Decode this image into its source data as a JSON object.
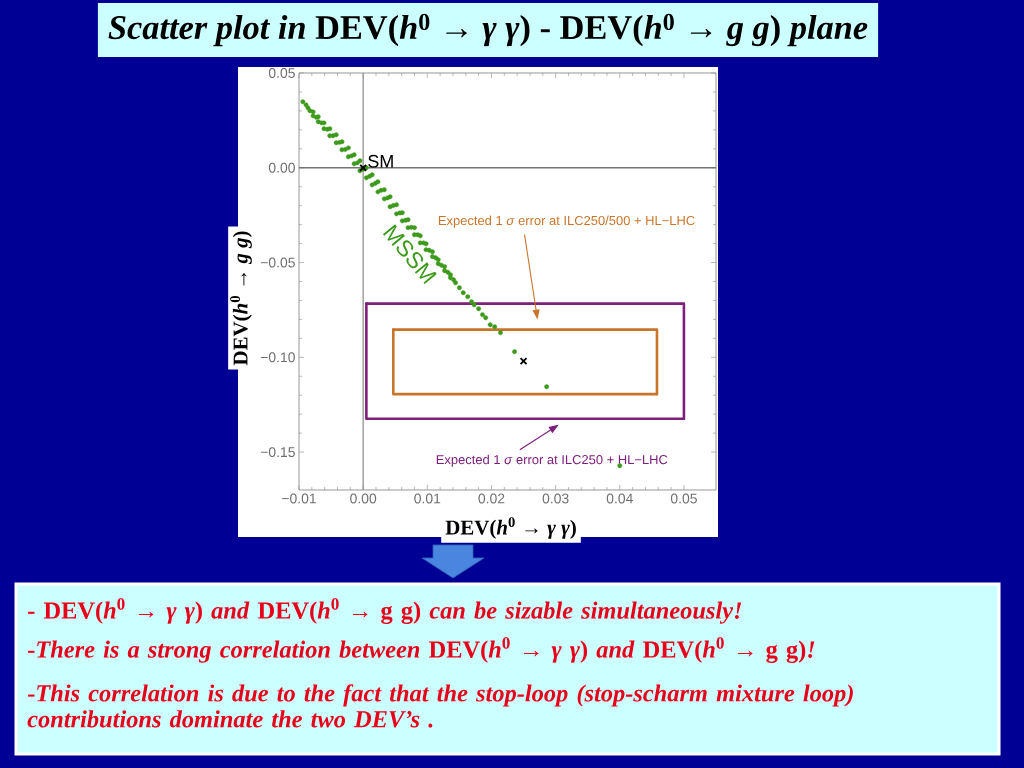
{
  "chart_data": {
    "type": "scatter",
    "title": "*Scatter plot in* DEV(*h*$^{0}$ → *γ γ*) - DEV(*h*$^{0}$ → *g g*) *plane*",
    "xlabel": "DEV(*h*$^{0}$ → *γ γ*)",
    "ylabel": "DEV(*h*$^{0}$ → *g g*)",
    "xlim": [
      -0.01,
      0.055
    ],
    "ylim": [
      -0.17,
      0.05
    ],
    "xticks": [
      {
        "value": -0.01,
        "label": "−0.01"
      },
      {
        "value": 0,
        "label": "0.00"
      },
      {
        "value": 0.01,
        "label": "0.01"
      },
      {
        "value": 0.02,
        "label": "0.02"
      },
      {
        "value": 0.03,
        "label": "0.03"
      },
      {
        "value": 0.04,
        "label": "0.04"
      },
      {
        "value": 0.05,
        "label": "0.05"
      }
    ],
    "yticks": [
      {
        "value": -0.15,
        "label": "−0.15"
      },
      {
        "value": -0.1,
        "label": "−0.10"
      },
      {
        "value": -0.05,
        "label": "−0.05"
      },
      {
        "value": 0,
        "label": "0.00"
      },
      {
        "value": 0.05,
        "label": "0.05"
      }
    ],
    "ref_lines": [
      {
        "axis": "x",
        "value": 0,
        "color": "#929292"
      },
      {
        "axis": "y",
        "value": 0,
        "color": "#747474"
      }
    ],
    "series": [
      {
        "name": "Expected 1 *σ* error at ILC250/500 + HL−LHC",
        "type": "line",
        "color": "#c8742a",
        "marker": "none",
        "line_style": "solid",
        "x": [
          0.0047,
          0.0458,
          0.0458
        ],
        "values": [
          -0.0854,
          -0.0854,
          -0.1194
        ]
      },
      {
        "type": "line",
        "color": "#c8742a",
        "marker": "none",
        "line_style": "solid",
        "x": [
          0.0458,
          0.0047,
          0.0047
        ],
        "values": [
          -0.1194,
          -0.1194,
          -0.0854
        ]
      },
      {
        "name": "Expected 1 *σ* error at ILC250 + HL−LHC",
        "type": "line",
        "color": "#7d1f7b",
        "marker": "none",
        "line_style": "solid",
        "x": [
          0.0005,
          0.05,
          0.05
        ],
        "values": [
          -0.0717,
          -0.0717,
          -0.1324
        ]
      },
      {
        "type": "line",
        "color": "#7d1f7b",
        "marker": "none",
        "line_style": "solid",
        "x": [
          0.05,
          0.0005,
          0.0005
        ],
        "values": [
          -0.1324,
          -0.1324,
          -0.0717
        ]
      },
      {
        "name": "MSSM",
        "color": "#3d9a1c",
        "marker": "circle",
        "x": [
          -0.0094,
          -0.0089,
          -0.0086,
          -0.0083,
          -0.0078,
          -0.0078,
          -0.007,
          -0.007,
          -0.0061,
          -0.0061,
          -0.0052,
          -0.0052,
          -0.0042,
          -0.0042,
          -0.0033,
          -0.0033,
          -0.0023,
          -0.0023,
          -0.0014,
          -0.0014,
          -0.0005,
          -0.0005,
          0.0005,
          0.0005,
          0.0014,
          0.0014,
          0.0023,
          0.0023,
          0.0033,
          0.0033,
          0.0042,
          0.0042,
          0.0052,
          0.0052,
          0.0061,
          0.0061,
          0.007,
          0.007,
          0.008,
          0.008,
          0.0089,
          0.0089,
          0.0098,
          0.0098,
          0.0108,
          0.0108,
          0.0117,
          0.0117,
          0.0127,
          0.0127,
          0.0136,
          0.0136,
          0.0144,
          0.015,
          0.0156,
          0.0163,
          0.0169,
          0.0173,
          0.018,
          0.0186,
          0.0191,
          0.0198,
          0.0205,
          0.0214,
          0.0236,
          0.0286,
          0.04,
          -0.0073,
          -0.0065,
          -0.0056,
          -0.0047,
          -0.0037,
          -0.0028,
          -0.0018,
          -0.0009,
          0.0,
          0.001,
          0.0019,
          0.0028,
          0.0038,
          0.0047,
          0.0057,
          0.0066,
          0.0075,
          0.0085,
          0.0094,
          0.0103,
          0.0113,
          0.0122,
          0.0132,
          0.0141
        ],
        "values": [
          0.0348,
          0.0332,
          0.0316,
          0.0301,
          0.0295,
          0.0274,
          0.0269,
          0.0243,
          0.0237,
          0.0206,
          0.0206,
          0.0169,
          0.0174,
          0.0132,
          0.0137,
          0.0095,
          0.0105,
          0.0058,
          0.0069,
          0.0021,
          0.0037,
          -0.0016,
          0.0,
          -0.0053,
          -0.0037,
          -0.009,
          -0.0074,
          -0.0127,
          -0.0116,
          -0.0164,
          -0.0153,
          -0.0206,
          -0.0195,
          -0.0243,
          -0.0237,
          -0.028,
          -0.0274,
          -0.0316,
          -0.0316,
          -0.0353,
          -0.0359,
          -0.0396,
          -0.0401,
          -0.0432,
          -0.0443,
          -0.0469,
          -0.0485,
          -0.0506,
          -0.0522,
          -0.0543,
          -0.0564,
          -0.058,
          -0.0607,
          -0.0633,
          -0.0659,
          -0.068,
          -0.0707,
          -0.0723,
          -0.0744,
          -0.0775,
          -0.0791,
          -0.0828,
          -0.0839,
          -0.087,
          -0.097,
          -0.1155,
          -0.1572,
          0.0266,
          0.0237,
          0.0203,
          0.0169,
          0.0134,
          0.0097,
          0.0063,
          0.0026,
          -0.0008,
          -0.0045,
          -0.0082,
          -0.0119,
          -0.0159,
          -0.0199,
          -0.0238,
          -0.0277,
          -0.0314,
          -0.0353,
          -0.0396,
          -0.0435,
          -0.0475,
          -0.0514,
          -0.0551,
          -0.0591
        ]
      },
      {
        "name": "SM",
        "color": "#000000",
        "marker": "cross",
        "x": [
          0
        ],
        "values": [
          0
        ]
      },
      {
        "color": "#000000",
        "marker": "cross",
        "x": [
          0.025
        ],
        "values": [
          -0.102
        ]
      }
    ],
    "annotations": [
      "- DEV(*h*$^{0}$ → *γ γ*) *and* DEV(*h*$^{0}$ → g g) *can be sizable simultaneously!*",
      "-*There is a strong correlation between* DEV(*h*$^{0}$ → *γ γ*) *and* DEV(*h*$^{0}$ → g g)*!*",
      "-*This correlation is due to the fact that the stop-loop (stop-scharm mixture loop) contributions dominate the two DEV’s .*"
    ]
  }
}
